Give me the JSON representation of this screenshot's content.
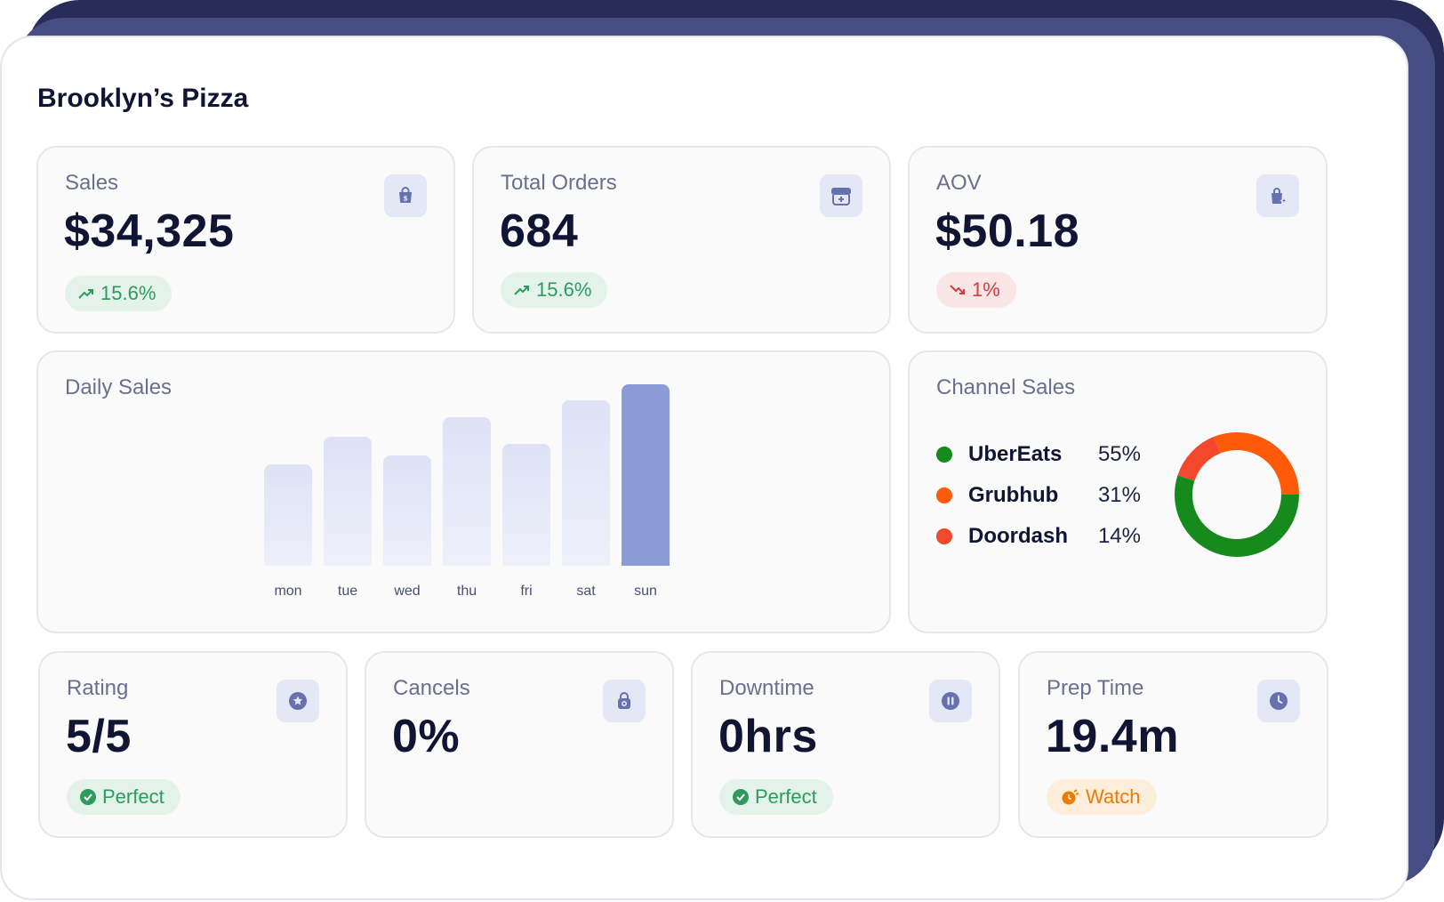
{
  "title": "Brooklyn’s Pizza",
  "kpis": {
    "sales": {
      "label": "Sales",
      "value": "$34,325",
      "change": "15.6%",
      "icon": "shopping-bag-dollar-icon"
    },
    "orders": {
      "label": "Total Orders",
      "value": "684",
      "change": "15.6%",
      "icon": "storefront-icon"
    },
    "aov": {
      "label": "AOV",
      "value": "$50.18",
      "change": "1%",
      "icon": "bag-sparkle-icon"
    }
  },
  "daily_sales": {
    "label": "Daily Sales",
    "highlight_color": "#8a9bd8"
  },
  "chart_data": {
    "type": "bar",
    "categories": [
      "mon",
      "tue",
      "wed",
      "thu",
      "fri",
      "sat",
      "sun"
    ],
    "values": [
      56,
      71,
      61,
      82,
      67,
      91,
      100
    ],
    "highlight": "sun"
  },
  "channel_sales": {
    "label": "Channel Sales",
    "channels": [
      {
        "name": "UberEats",
        "pct": "55%",
        "value": 55,
        "color": "#168a1d"
      },
      {
        "name": "Grubhub",
        "pct": "31%",
        "value": 31,
        "color": "#ff5a0a"
      },
      {
        "name": "Doordash",
        "pct": "14%",
        "value": 14,
        "color": "#f2482b"
      }
    ]
  },
  "ops": {
    "rating": {
      "label": "Rating",
      "value": "5/5",
      "status": "Perfect",
      "icon": "star-badge-icon"
    },
    "cancels": {
      "label": "Cancels",
      "value": "0%",
      "icon": "lock-bag-icon"
    },
    "downtime": {
      "label": "Downtime",
      "value": "0hrs",
      "status": "Perfect",
      "icon": "pause-icon"
    },
    "prep_time": {
      "label": "Prep Time",
      "value": "19.4m",
      "status": "Watch",
      "icon": "clock-icon"
    }
  },
  "colors": {
    "positive": "#2e9a5d",
    "negative": "#d63b3b",
    "warning": "#ec7a06",
    "icon_fill": "#6672ad"
  }
}
